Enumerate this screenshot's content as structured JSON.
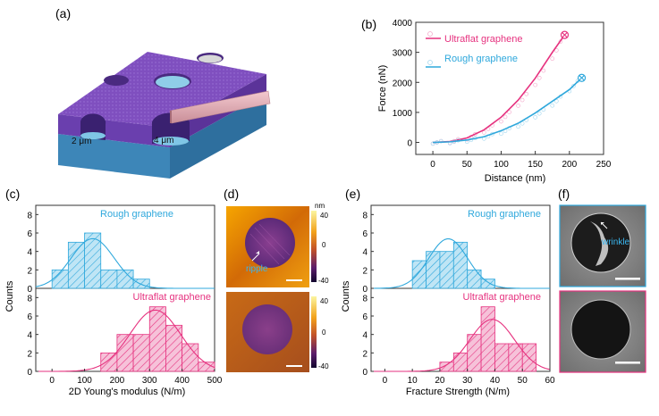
{
  "panel_labels": {
    "a": "(a)",
    "b": "(b)",
    "c": "(c)",
    "d": "(d)",
    "e": "(e)",
    "f": "(f)"
  },
  "schematic": {
    "hole_small_label": "2 μm",
    "hole_large_label": "4 μm"
  },
  "colors": {
    "ultraflat": "#e6327f",
    "rough": "#2fa8dc",
    "purple": "#7f4fbf",
    "substrate": "#3d86b8"
  },
  "afm": {
    "unit": "nm",
    "colorbar_ticks": [
      "40",
      "0",
      "-40"
    ],
    "ripple_label": "ripple"
  },
  "sem": {
    "wrinkle_label": "wrinkle"
  },
  "chart_data": [
    {
      "panel": "b",
      "type": "line",
      "xlabel": "Distance (nm)",
      "ylabel": "Force (nN)",
      "xlim": [
        -25,
        250
      ],
      "ylim": [
        -400,
        4000
      ],
      "xticks": [
        "0",
        "50",
        "100",
        "150",
        "200",
        "250"
      ],
      "yticks": [
        "0",
        "1000",
        "2000",
        "3000",
        "4000"
      ],
      "series": [
        {
          "name": "Ultraflat graphene",
          "x": [
            0,
            25,
            50,
            75,
            100,
            125,
            150,
            175,
            193
          ],
          "y": [
            0,
            30,
            150,
            420,
            840,
            1410,
            2140,
            3000,
            3580
          ],
          "break_point": [
            193,
            3580
          ]
        },
        {
          "name": "Rough graphene",
          "x": [
            0,
            25,
            50,
            75,
            100,
            125,
            150,
            175,
            200,
            218
          ],
          "y": [
            0,
            20,
            80,
            190,
            390,
            640,
            980,
            1370,
            1760,
            2150
          ],
          "break_point": [
            218,
            2150
          ]
        }
      ],
      "legend": "top-left"
    },
    {
      "panel": "c",
      "type": "bar",
      "subtype": "histogram",
      "xlabel": "2D Young's modulus (N/m)",
      "ylabel": "Counts",
      "xlim": [
        -50,
        500
      ],
      "xticks": [
        "0",
        "100",
        "200",
        "300",
        "400",
        "500"
      ],
      "series": [
        {
          "name": "Rough graphene",
          "bin_width": 50,
          "bin_starts": [
            0,
            50,
            100,
            150,
            200,
            250
          ],
          "counts": [
            2,
            5,
            6,
            2,
            2,
            1
          ],
          "ylim": [
            0,
            9
          ],
          "yticks": [
            "0",
            "2",
            "4",
            "6",
            "8"
          ]
        },
        {
          "name": "Ultraflat graphene",
          "bin_width": 50,
          "bin_starts": [
            150,
            200,
            250,
            300,
            350,
            400,
            450
          ],
          "counts": [
            2,
            4,
            4,
            7,
            5,
            3,
            1
          ],
          "ylim": [
            0,
            9
          ],
          "yticks": [
            "0",
            "2",
            "4",
            "6",
            "8"
          ]
        }
      ]
    },
    {
      "panel": "e",
      "type": "bar",
      "subtype": "histogram",
      "xlabel": "Fracture Strength (N/m)",
      "ylabel": "Counts",
      "xlim": [
        -5,
        60
      ],
      "xticks": [
        "0",
        "10",
        "20",
        "30",
        "40",
        "50",
        "60"
      ],
      "series": [
        {
          "name": "Rough graphene",
          "bin_width": 5,
          "bin_starts": [
            10,
            15,
            20,
            25,
            30,
            35
          ],
          "counts": [
            3,
            4,
            4,
            5,
            2,
            1
          ],
          "ylim": [
            0,
            9
          ],
          "yticks": [
            "0",
            "2",
            "4",
            "6",
            "8"
          ]
        },
        {
          "name": "Ultraflat graphene",
          "bin_width": 5,
          "bin_starts": [
            20,
            25,
            30,
            35,
            40,
            45,
            50
          ],
          "counts": [
            1,
            2,
            4,
            7,
            3,
            3,
            3
          ],
          "ylim": [
            0,
            9
          ],
          "yticks": [
            "0",
            "2",
            "4",
            "6",
            "8"
          ]
        }
      ]
    }
  ]
}
